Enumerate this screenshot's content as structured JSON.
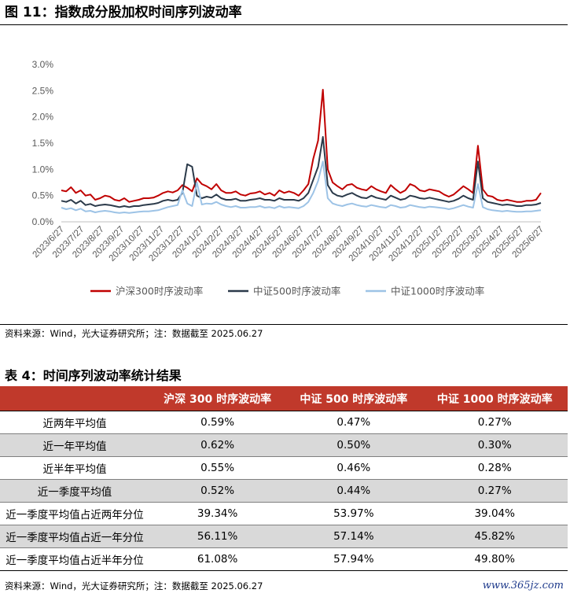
{
  "figure": {
    "title": "图 11：指数成分股加权时间序列波动率",
    "source": "资料来源：Wind，光大证券研究所；注：数据截至 2025.06.27"
  },
  "chart_data": {
    "type": "line",
    "title": "",
    "xlabel": "",
    "ylabel": "",
    "ylim": [
      0,
      3.0
    ],
    "y_unit": "%",
    "y_ticks": [
      "0.0%",
      "0.5%",
      "1.0%",
      "1.5%",
      "2.0%",
      "2.5%",
      "3.0%"
    ],
    "x_ticks": [
      "2023/6/27",
      "2023/7/27",
      "2023/8/27",
      "2023/9/27",
      "2023/10/27",
      "2023/11/27",
      "2023/12/27",
      "2024/1/27",
      "2024/2/27",
      "2024/3/27",
      "2024/4/27",
      "2024/5/27",
      "2024/6/27",
      "2024/7/27",
      "2024/8/27",
      "2024/9/27",
      "2024/10/27",
      "2024/11/27",
      "2024/12/27",
      "2025/1/27",
      "2025/2/27",
      "2025/3/27",
      "2025/4/27",
      "2025/5/27",
      "2025/6/27"
    ],
    "grid": false,
    "legend_position": "bottom",
    "series": [
      {
        "name": "沪深300时序波动率",
        "color": "#c00000",
        "values": [
          0.6,
          0.58,
          0.66,
          0.55,
          0.6,
          0.5,
          0.52,
          0.42,
          0.45,
          0.5,
          0.48,
          0.42,
          0.4,
          0.45,
          0.38,
          0.4,
          0.42,
          0.45,
          0.45,
          0.46,
          0.5,
          0.55,
          0.58,
          0.56,
          0.6,
          0.7,
          0.65,
          0.58,
          0.83,
          0.72,
          0.68,
          0.62,
          0.72,
          0.6,
          0.55,
          0.55,
          0.58,
          0.52,
          0.5,
          0.54,
          0.55,
          0.58,
          0.52,
          0.55,
          0.5,
          0.6,
          0.55,
          0.58,
          0.55,
          0.5,
          0.6,
          0.72,
          1.2,
          1.55,
          2.52,
          1.0,
          0.75,
          0.68,
          0.62,
          0.7,
          0.72,
          0.65,
          0.62,
          0.6,
          0.68,
          0.62,
          0.58,
          0.55,
          0.7,
          0.62,
          0.55,
          0.6,
          0.72,
          0.68,
          0.6,
          0.58,
          0.62,
          0.6,
          0.58,
          0.52,
          0.48,
          0.52,
          0.6,
          0.68,
          0.62,
          0.55,
          1.45,
          0.62,
          0.5,
          0.48,
          0.42,
          0.4,
          0.42,
          0.4,
          0.38,
          0.38,
          0.4,
          0.4,
          0.42,
          0.55
        ]
      },
      {
        "name": "中证500时序波动率",
        "color": "#2b3a4a",
        "values": [
          0.4,
          0.38,
          0.42,
          0.35,
          0.4,
          0.32,
          0.34,
          0.3,
          0.32,
          0.33,
          0.32,
          0.3,
          0.28,
          0.3,
          0.28,
          0.3,
          0.3,
          0.32,
          0.33,
          0.34,
          0.36,
          0.4,
          0.42,
          0.4,
          0.42,
          0.55,
          1.1,
          1.05,
          0.5,
          0.45,
          0.48,
          0.46,
          0.52,
          0.45,
          0.42,
          0.42,
          0.44,
          0.4,
          0.4,
          0.42,
          0.43,
          0.45,
          0.42,
          0.42,
          0.4,
          0.45,
          0.42,
          0.42,
          0.42,
          0.4,
          0.45,
          0.55,
          0.8,
          1.05,
          1.62,
          0.7,
          0.55,
          0.5,
          0.48,
          0.52,
          0.55,
          0.5,
          0.46,
          0.45,
          0.5,
          0.46,
          0.44,
          0.42,
          0.5,
          0.46,
          0.42,
          0.44,
          0.5,
          0.48,
          0.45,
          0.44,
          0.46,
          0.44,
          0.42,
          0.4,
          0.38,
          0.4,
          0.44,
          0.5,
          0.45,
          0.42,
          1.15,
          0.45,
          0.38,
          0.36,
          0.34,
          0.32,
          0.33,
          0.32,
          0.3,
          0.3,
          0.32,
          0.32,
          0.33,
          0.36
        ]
      },
      {
        "name": "中证1000时序波动率",
        "color": "#9dc3e6",
        "values": [
          0.27,
          0.24,
          0.26,
          0.22,
          0.25,
          0.2,
          0.21,
          0.18,
          0.2,
          0.21,
          0.2,
          0.18,
          0.17,
          0.18,
          0.17,
          0.18,
          0.19,
          0.2,
          0.2,
          0.21,
          0.22,
          0.25,
          0.28,
          0.3,
          0.32,
          0.6,
          0.35,
          0.3,
          0.75,
          0.33,
          0.35,
          0.34,
          0.38,
          0.33,
          0.3,
          0.28,
          0.3,
          0.27,
          0.27,
          0.28,
          0.28,
          0.3,
          0.27,
          0.28,
          0.26,
          0.3,
          0.27,
          0.28,
          0.27,
          0.26,
          0.3,
          0.38,
          0.55,
          0.78,
          1.15,
          0.45,
          0.35,
          0.32,
          0.3,
          0.33,
          0.35,
          0.32,
          0.3,
          0.29,
          0.32,
          0.3,
          0.28,
          0.27,
          0.32,
          0.3,
          0.27,
          0.28,
          0.32,
          0.3,
          0.28,
          0.27,
          0.29,
          0.28,
          0.27,
          0.26,
          0.24,
          0.26,
          0.29,
          0.32,
          0.29,
          0.27,
          0.72,
          0.28,
          0.24,
          0.22,
          0.21,
          0.2,
          0.21,
          0.2,
          0.19,
          0.19,
          0.2,
          0.2,
          0.21,
          0.22
        ]
      }
    ]
  },
  "table": {
    "title": "表 4：时间序列波动率统计结果",
    "headers": [
      "",
      "沪深 300 时序波动率",
      "中证 500 时序波动率",
      "中证 1000 时序波动率"
    ],
    "rows": [
      [
        "近两年平均值",
        "0.59%",
        "0.47%",
        "0.27%"
      ],
      [
        "近一年平均值",
        "0.62%",
        "0.50%",
        "0.30%"
      ],
      [
        "近半年平均值",
        "0.55%",
        "0.46%",
        "0.28%"
      ],
      [
        "近一季度平均值",
        "0.52%",
        "0.44%",
        "0.27%"
      ],
      [
        "近一季度平均值占近两年分位",
        "39.34%",
        "53.97%",
        "39.04%"
      ],
      [
        "近一季度平均值占近一年分位",
        "56.11%",
        "57.14%",
        "45.82%"
      ],
      [
        "近一季度平均值占近半年分位",
        "61.08%",
        "57.94%",
        "49.80%"
      ]
    ],
    "source": "资料来源：Wind，光大证券研究所；注：数据截至 2025.06.27"
  },
  "watermark": "www.365jz.com"
}
